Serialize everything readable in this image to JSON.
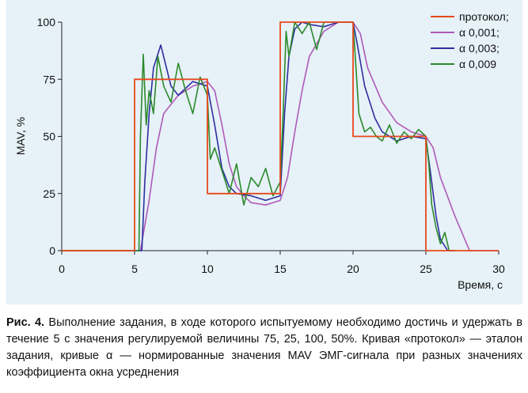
{
  "chart_data": {
    "type": "line",
    "title": "",
    "xlabel": "Время, с",
    "ylabel": "MAV, %",
    "xlim": [
      0,
      30
    ],
    "ylim": [
      0,
      100
    ],
    "x_ticks": [
      "0",
      "5",
      "10",
      "15",
      "20",
      "25",
      "30"
    ],
    "y_ticks": [
      "0",
      "25",
      "50",
      "75",
      "100"
    ],
    "grid": false,
    "legend_position": "top-right",
    "series": [
      {
        "name": "протокол;",
        "color": "#e8481c",
        "x": [
          0,
          5,
          5,
          10,
          10,
          15,
          15,
          20,
          20,
          25,
          25,
          30
        ],
        "y": [
          0,
          0,
          75,
          75,
          25,
          25,
          100,
          100,
          50,
          50,
          0,
          0
        ]
      },
      {
        "name": "α 0,001;",
        "color": "#b05ab8",
        "x": [
          0,
          5.4,
          6,
          6.5,
          7,
          8,
          9,
          10,
          10.5,
          11,
          11.5,
          12,
          12.5,
          13,
          14,
          15,
          15.5,
          16,
          16.5,
          17,
          18,
          19,
          20,
          20.5,
          21,
          22,
          23,
          24,
          25,
          25.5,
          26,
          27,
          28,
          30
        ],
        "y": [
          0,
          0,
          22,
          45,
          60,
          68,
          72,
          74,
          70,
          55,
          38,
          28,
          24,
          21,
          20,
          22,
          32,
          52,
          70,
          85,
          96,
          100,
          100,
          95,
          80,
          65,
          56,
          52,
          50,
          45,
          32,
          15,
          0,
          0
        ]
      },
      {
        "name": "α 0,003;",
        "color": "#2e2e9e",
        "x": [
          0,
          5.5,
          5.7,
          6,
          6.3,
          6.8,
          7.5,
          8,
          9,
          10,
          10.5,
          11,
          11.5,
          12,
          13,
          14,
          15,
          15.3,
          15.6,
          16,
          16.5,
          17,
          18,
          19,
          20,
          20.3,
          20.8,
          21.5,
          22,
          23,
          24,
          25,
          25.3,
          25.7,
          26,
          26.5,
          27
        ],
        "y": [
          0,
          0,
          30,
          60,
          80,
          90,
          72,
          68,
          74,
          72,
          55,
          36,
          28,
          25,
          24,
          22,
          24,
          60,
          85,
          97,
          100,
          99,
          98,
          100,
          100,
          90,
          72,
          58,
          52,
          48,
          50,
          49,
          35,
          15,
          5,
          0,
          0
        ]
      },
      {
        "name": "α 0,009",
        "color": "#2b8a2b",
        "x": [
          0,
          5.3,
          5.4,
          5.6,
          5.8,
          6,
          6.3,
          6.6,
          7,
          7.5,
          8,
          8.5,
          9,
          9.5,
          10,
          10.2,
          10.5,
          11,
          11.5,
          12,
          12.5,
          13,
          13.5,
          14,
          14.5,
          15,
          15.2,
          15.4,
          15.6,
          16,
          16.5,
          17,
          17.5,
          18,
          19,
          19.5,
          20,
          20.2,
          20.4,
          20.8,
          21.2,
          21.6,
          22,
          22.5,
          23,
          23.5,
          24,
          24.5,
          25,
          25.2,
          25.4,
          25.7,
          26,
          26.3,
          26.6,
          27
        ],
        "y": [
          0,
          0,
          50,
          86,
          55,
          70,
          60,
          85,
          72,
          65,
          82,
          70,
          60,
          76,
          68,
          40,
          45,
          35,
          25,
          38,
          20,
          32,
          28,
          36,
          24,
          30,
          60,
          96,
          85,
          100,
          95,
          100,
          88,
          100,
          100,
          100,
          100,
          80,
          60,
          52,
          54,
          50,
          48,
          55,
          47,
          52,
          49,
          53,
          50,
          38,
          20,
          10,
          3,
          8,
          0,
          0
        ]
      }
    ]
  },
  "caption": {
    "label": "Рис. 4.",
    "text": " Выполнение задания, в ходе которого испытуемому необходимо достичь и удержать в течение 5 с значения регулируемой величины 75, 25, 100, 50%. Кривая «протокол» — эталон задания, кривые α — нормированные значения MAV ЭМГ-сигнала при разных значениях коэффициента окна усреднения"
  }
}
